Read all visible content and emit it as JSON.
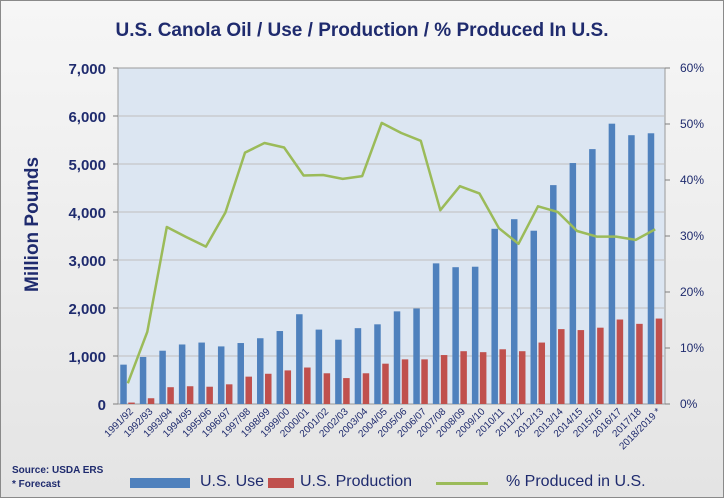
{
  "chart_data": {
    "type": "bar",
    "title": "U.S. Canola Oil / Use / Production / % Produced In U.S.",
    "ylabel": "Million Pounds",
    "ylabel_right": "",
    "ylim": [
      0,
      7000
    ],
    "yticks": [
      "0",
      "1,000",
      "2,000",
      "3,000",
      "4,000",
      "5,000",
      "6,000",
      "7,000"
    ],
    "y2lim": [
      0,
      60
    ],
    "y2ticks": [
      "0%",
      "10%",
      "20%",
      "30%",
      "40%",
      "50%",
      "60%"
    ],
    "categories": [
      "1991/92",
      "1992/93",
      "1993/94",
      "1994/95",
      "1995/96",
      "1996/97",
      "1997/98",
      "1998/99",
      "1999/00",
      "2000/01",
      "2001/02",
      "2002/03",
      "2003/04",
      "2004/05",
      "2005/06",
      "2006/07",
      "2007/08",
      "2008/09",
      "2009/10",
      "2010/11",
      "2011/12",
      "2012/13",
      "2013/14",
      "2014/15",
      "2015/16",
      "2016/17",
      "2017/18",
      "2018/2019 *"
    ],
    "series": [
      {
        "name": "U.S. Use",
        "color": "#4f81bd",
        "axis": "left",
        "values": [
          820,
          980,
          1110,
          1240,
          1280,
          1200,
          1270,
          1370,
          1520,
          1870,
          1550,
          1340,
          1580,
          1660,
          1930,
          1990,
          2930,
          2850,
          2860,
          3650,
          3850,
          3610,
          4560,
          5020,
          5310,
          5840,
          5600,
          5640
        ]
      },
      {
        "name": "U.S. Production",
        "color": "#c0504d",
        "axis": "left",
        "values": [
          30,
          120,
          350,
          370,
          360,
          410,
          570,
          630,
          700,
          760,
          640,
          540,
          640,
          840,
          930,
          930,
          1020,
          1100,
          1080,
          1140,
          1100,
          1280,
          1560,
          1540,
          1590,
          1760,
          1670,
          1780
        ]
      },
      {
        "name": "% Produced in U.S.",
        "color": "#9bbb59",
        "axis": "right",
        "type": "line",
        "values": [
          3.7,
          12.9,
          31.6,
          29.8,
          28.1,
          34.2,
          44.9,
          46.6,
          45.8,
          40.8,
          40.9,
          40.2,
          40.7,
          50.2,
          48.4,
          47.0,
          34.6,
          38.9,
          37.6,
          31.4,
          28.6,
          35.3,
          34.3,
          30.9,
          29.9,
          29.9,
          29.3,
          31.2
        ]
      }
    ],
    "grid": true,
    "legend": "bottom"
  },
  "source": {
    "line1": "Source: USDA ERS",
    "line2": "* Forecast"
  }
}
